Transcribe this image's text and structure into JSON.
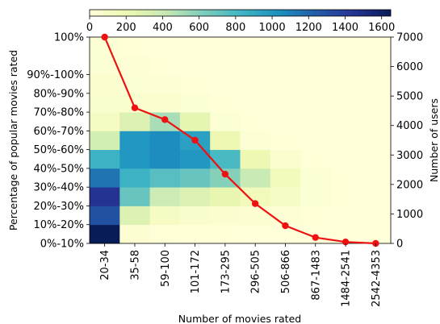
{
  "chart_data": {
    "type": "heatmap",
    "x_categories": [
      "20-34",
      "35-58",
      "59-100",
      "101-172",
      "173-295",
      "296-505",
      "506-866",
      "867-1483",
      "1484-2541",
      "2542-4353"
    ],
    "y_categories": [
      "0%-10%",
      "10%-20%",
      "20%-30%",
      "30%-40%",
      "40%-50%",
      "50%-60%",
      "60%-70%",
      "70%-80%",
      "80%-90%",
      "90%-100%",
      "100%"
    ],
    "xlabel": "Number of movies rated",
    "ylabel_left": "Percentage of popular movies rated",
    "ylabel_right": "Number of users",
    "colorbar": {
      "min": 0,
      "max": 1650,
      "ticks": [
        0,
        200,
        400,
        600,
        800,
        1000,
        1200,
        1400,
        1600
      ],
      "colormap": "YlGnBu",
      "position": "top"
    },
    "cell_values": [
      [
        1650,
        35,
        10,
        5,
        3,
        2,
        1,
        0,
        0,
        0
      ],
      [
        1300,
        300,
        120,
        70,
        50,
        40,
        25,
        8,
        2,
        0
      ],
      [
        1450,
        700,
        380,
        300,
        230,
        160,
        100,
        30,
        5,
        0
      ],
      [
        1150,
        850,
        750,
        700,
        600,
        400,
        150,
        30,
        5,
        0
      ],
      [
        850,
        1000,
        1050,
        1000,
        800,
        200,
        50,
        10,
        2,
        0
      ],
      [
        350,
        1000,
        1050,
        950,
        200,
        20,
        5,
        0,
        0,
        0
      ],
      [
        120,
        300,
        500,
        250,
        30,
        5,
        0,
        0,
        0,
        0
      ],
      [
        60,
        60,
        50,
        30,
        5,
        0,
        0,
        0,
        0,
        0
      ],
      [
        50,
        30,
        20,
        5,
        0,
        0,
        0,
        0,
        0,
        0
      ],
      [
        30,
        20,
        5,
        0,
        0,
        0,
        0,
        0,
        0,
        0
      ],
      [
        30,
        5,
        0,
        0,
        0,
        0,
        0,
        0,
        0,
        0
      ]
    ],
    "line_series": {
      "axis": "right",
      "color": "#ee1111",
      "values": [
        7000,
        4600,
        4200,
        3500,
        2350,
        1350,
        600,
        200,
        50,
        0
      ]
    },
    "right_axis": {
      "ylim": [
        0,
        7000
      ],
      "ticks": [
        0,
        1000,
        2000,
        3000,
        4000,
        5000,
        6000,
        7000
      ]
    }
  }
}
